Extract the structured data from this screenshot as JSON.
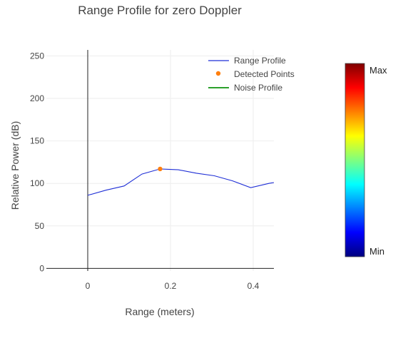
{
  "chart_data": {
    "type": "line",
    "title": "Range Profile for zero Doppler",
    "xlabel": "Range (meters)",
    "ylabel": "Relative Power (dB)",
    "xlim": [
      -0.1,
      0.45
    ],
    "ylim": [
      -3,
      257
    ],
    "x_ticks": [
      0,
      0.2,
      0.4
    ],
    "x_tick_labels": [
      "0",
      "0.2",
      "0.4"
    ],
    "y_ticks": [
      0,
      50,
      100,
      150,
      200,
      250
    ],
    "y_tick_labels": [
      "0",
      "50",
      "100",
      "150",
      "200",
      "250"
    ],
    "grid": true,
    "legend_position": "top-right",
    "series": [
      {
        "name": "Range Profile",
        "kind": "line",
        "color": "#1f2fd6",
        "x": [
          0,
          0.044,
          0.088,
          0.131,
          0.175,
          0.219,
          0.263,
          0.306,
          0.35,
          0.394,
          0.438,
          0.45
        ],
        "y": [
          86,
          92,
          97,
          111,
          117,
          116,
          112,
          109,
          103,
          95,
          100,
          101
        ]
      },
      {
        "name": "Detected Points",
        "kind": "markers",
        "color": "#ff7f0e",
        "x": [
          0.175
        ],
        "y": [
          117
        ]
      },
      {
        "name": "Noise Profile",
        "kind": "line",
        "color": "#2ca02c",
        "x": [],
        "y": []
      }
    ],
    "colorbar": {
      "max_label": "Max",
      "min_label": "Min",
      "colorscale": [
        "#00007f",
        "#0000ff",
        "#007fff",
        "#00ffff",
        "#7fff7f",
        "#ffff00",
        "#ff7f00",
        "#ff0000",
        "#7f0000"
      ]
    }
  }
}
